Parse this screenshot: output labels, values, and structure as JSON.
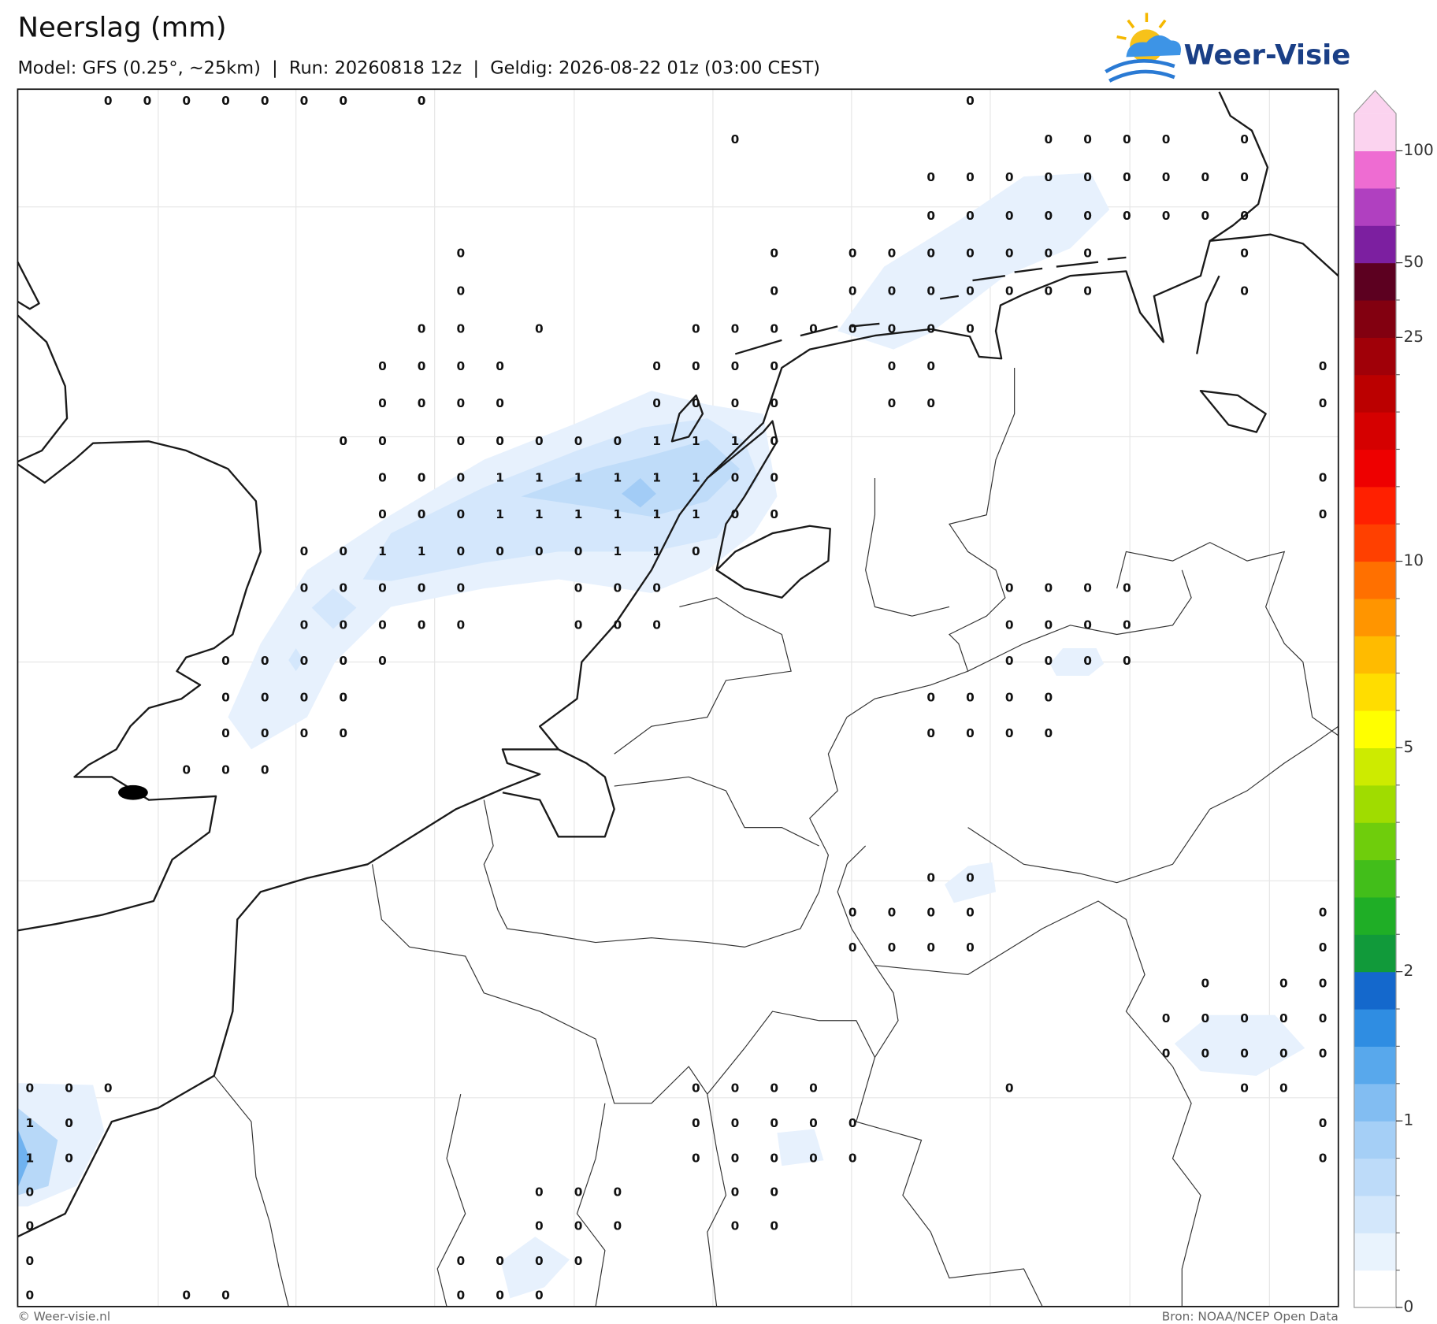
{
  "header": {
    "title": "Neerslag (mm)",
    "subtitle": "Model: GFS (0.25°, ~25km)  |  Run: 20260818 12z  |  Geldig: 2026-08-22 01z (03:00 CEST)",
    "logo": "Weer-Visie"
  },
  "footer": {
    "left": "© Weer-visie.nl",
    "right": "Bron: NOAA/NCEP Open Data"
  },
  "colorbar": {
    "levels": [
      0,
      0.2,
      0.4,
      0.6,
      0.8,
      1,
      1.25,
      1.5,
      1.75,
      2,
      2.5,
      3,
      3.5,
      4,
      4.5,
      5,
      6,
      7,
      8,
      9,
      10,
      12.5,
      15,
      17.5,
      20,
      22.5,
      25,
      37.5,
      50,
      67,
      83,
      100
    ],
    "colors": [
      "#ffffff",
      "#e9f3fd",
      "#d3e7fb",
      "#bddbf9",
      "#a5cff6",
      "#82bdf2",
      "#58a8ec",
      "#2f8de2",
      "#1468cc",
      "#119a3a",
      "#1fae26",
      "#42be1a",
      "#6fcd0c",
      "#a0dc00",
      "#cdeb00",
      "#ffff00",
      "#ffdd00",
      "#ffbb00",
      "#ff9500",
      "#ff7000",
      "#ff4000",
      "#ff2000",
      "#ee0000",
      "#d50000",
      "#bb0000",
      "#a00008",
      "#820010",
      "#5c0020",
      "#7c1fa0",
      "#b040c0",
      "#ee6cd2"
    ],
    "extend_color": "#fbd3ef",
    "ticks": [
      0,
      1,
      2,
      5,
      10,
      25,
      50,
      100
    ]
  },
  "map": {
    "values": [
      [
        null,
        null,
        0,
        0,
        0,
        0,
        0,
        0,
        0,
        null,
        0,
        null,
        null,
        null,
        null,
        null,
        null,
        null,
        null,
        null,
        null,
        null,
        null,
        null,
        0,
        null,
        null,
        null,
        null,
        null,
        null,
        null,
        null,
        null
      ],
      [
        null,
        null,
        null,
        null,
        null,
        null,
        null,
        null,
        null,
        null,
        null,
        null,
        null,
        null,
        null,
        null,
        null,
        null,
        0,
        null,
        null,
        null,
        null,
        null,
        null,
        null,
        0,
        0,
        0,
        0,
        null,
        0,
        null,
        null
      ],
      [
        null,
        null,
        null,
        null,
        null,
        null,
        null,
        null,
        null,
        null,
        null,
        null,
        null,
        null,
        null,
        null,
        null,
        null,
        null,
        null,
        null,
        null,
        null,
        0,
        0,
        0,
        0,
        0,
        0,
        0,
        0,
        0,
        null,
        null
      ],
      [
        null,
        null,
        null,
        null,
        null,
        null,
        null,
        null,
        null,
        null,
        null,
        null,
        null,
        null,
        null,
        null,
        null,
        null,
        null,
        null,
        null,
        null,
        null,
        0,
        0,
        0,
        0,
        0,
        0,
        0,
        0,
        0,
        null,
        null
      ],
      [
        null,
        null,
        null,
        null,
        null,
        null,
        null,
        null,
        null,
        null,
        null,
        0,
        null,
        null,
        null,
        null,
        null,
        null,
        null,
        0,
        null,
        0,
        0,
        0,
        0,
        0,
        0,
        0,
        null,
        null,
        null,
        0,
        null,
        null
      ],
      [
        null,
        null,
        null,
        null,
        null,
        null,
        null,
        null,
        null,
        null,
        null,
        0,
        null,
        null,
        null,
        null,
        null,
        null,
        null,
        0,
        null,
        0,
        0,
        0,
        0,
        0,
        0,
        0,
        null,
        null,
        null,
        0,
        null,
        null
      ],
      [
        null,
        null,
        null,
        null,
        null,
        null,
        null,
        null,
        null,
        null,
        0,
        0,
        null,
        0,
        null,
        null,
        null,
        0,
        0,
        0,
        0,
        0,
        0,
        0,
        0,
        null,
        null,
        null,
        null,
        null,
        null,
        null,
        null,
        null
      ],
      [
        null,
        null,
        null,
        null,
        null,
        null,
        null,
        null,
        null,
        0,
        0,
        0,
        0,
        null,
        null,
        null,
        0,
        0,
        0,
        0,
        null,
        null,
        0,
        0,
        null,
        null,
        null,
        null,
        null,
        null,
        null,
        null,
        null,
        0
      ],
      [
        null,
        null,
        null,
        null,
        null,
        null,
        null,
        null,
        null,
        0,
        0,
        0,
        0,
        null,
        null,
        null,
        0,
        0,
        0,
        0,
        null,
        null,
        0,
        0,
        null,
        null,
        null,
        null,
        null,
        null,
        null,
        null,
        null,
        0
      ],
      [
        null,
        null,
        null,
        null,
        null,
        null,
        null,
        null,
        0,
        0,
        null,
        0,
        0,
        0,
        0,
        0,
        1,
        1,
        1,
        0,
        null,
        null,
        null,
        null,
        null,
        null,
        null,
        null,
        null,
        null,
        null,
        null,
        null,
        null
      ],
      [
        null,
        null,
        null,
        null,
        null,
        null,
        null,
        null,
        null,
        0,
        0,
        0,
        1,
        1,
        1,
        1,
        1,
        1,
        0,
        0,
        null,
        null,
        null,
        null,
        null,
        null,
        null,
        null,
        null,
        null,
        null,
        null,
        null,
        0
      ],
      [
        null,
        null,
        null,
        null,
        null,
        null,
        null,
        null,
        null,
        0,
        0,
        0,
        1,
        1,
        1,
        1,
        1,
        1,
        0,
        0,
        null,
        null,
        null,
        null,
        null,
        null,
        null,
        null,
        null,
        null,
        null,
        null,
        null,
        0
      ],
      [
        null,
        null,
        null,
        null,
        null,
        null,
        null,
        0,
        0,
        1,
        1,
        0,
        0,
        0,
        0,
        1,
        1,
        0,
        null,
        null,
        null,
        null,
        null,
        null,
        null,
        null,
        null,
        null,
        null,
        null,
        null,
        null,
        null,
        null
      ],
      [
        null,
        null,
        null,
        null,
        null,
        null,
        null,
        0,
        0,
        0,
        0,
        0,
        null,
        null,
        0,
        0,
        0,
        null,
        null,
        null,
        null,
        null,
        null,
        null,
        null,
        0,
        0,
        0,
        0,
        null,
        null,
        null,
        null,
        null
      ],
      [
        null,
        null,
        null,
        null,
        null,
        null,
        null,
        0,
        0,
        0,
        0,
        0,
        null,
        null,
        0,
        0,
        0,
        null,
        null,
        null,
        null,
        null,
        null,
        null,
        null,
        0,
        0,
        0,
        0,
        null,
        null,
        null,
        null,
        null
      ],
      [
        null,
        null,
        null,
        null,
        null,
        0,
        0,
        0,
        0,
        0,
        null,
        null,
        null,
        null,
        null,
        null,
        null,
        null,
        null,
        null,
        null,
        null,
        null,
        null,
        null,
        0,
        0,
        0,
        0,
        null,
        null,
        null,
        null,
        null
      ],
      [
        null,
        null,
        null,
        null,
        null,
        0,
        0,
        0,
        0,
        null,
        null,
        null,
        null,
        null,
        null,
        null,
        null,
        null,
        null,
        null,
        null,
        null,
        null,
        0,
        0,
        0,
        0,
        null,
        null,
        null,
        null,
        null,
        null,
        null
      ],
      [
        null,
        null,
        null,
        null,
        null,
        0,
        0,
        0,
        0,
        null,
        null,
        null,
        null,
        null,
        null,
        null,
        null,
        null,
        null,
        null,
        null,
        null,
        null,
        0,
        0,
        0,
        0,
        null,
        null,
        null,
        null,
        null,
        null,
        null
      ],
      [
        null,
        null,
        null,
        null,
        0,
        0,
        0,
        null,
        null,
        null,
        null,
        null,
        null,
        null,
        null,
        null,
        null,
        null,
        null,
        null,
        null,
        null,
        null,
        null,
        null,
        null,
        null,
        null,
        null,
        null,
        null,
        null,
        null,
        null
      ],
      [
        null,
        null,
        null,
        null,
        null,
        null,
        null,
        null,
        null,
        null,
        null,
        null,
        null,
        null,
        null,
        null,
        null,
        null,
        null,
        null,
        null,
        null,
        null,
        null,
        null,
        null,
        null,
        null,
        null,
        null,
        null,
        null,
        null,
        null
      ],
      [
        null,
        null,
        null,
        null,
        null,
        null,
        null,
        null,
        null,
        null,
        null,
        null,
        null,
        null,
        null,
        null,
        null,
        null,
        null,
        null,
        null,
        null,
        null,
        null,
        null,
        null,
        null,
        null,
        null,
        null,
        null,
        null,
        null,
        null
      ],
      [
        null,
        null,
        null,
        null,
        null,
        null,
        null,
        null,
        null,
        null,
        null,
        null,
        null,
        null,
        null,
        null,
        null,
        null,
        null,
        null,
        null,
        null,
        null,
        0,
        0,
        null,
        null,
        null,
        null,
        null,
        null,
        null,
        null,
        null
      ],
      [
        null,
        null,
        null,
        null,
        null,
        null,
        null,
        null,
        null,
        null,
        null,
        null,
        null,
        null,
        null,
        null,
        null,
        null,
        null,
        null,
        null,
        0,
        0,
        0,
        0,
        null,
        null,
        null,
        null,
        null,
        null,
        null,
        null,
        0
      ],
      [
        null,
        null,
        null,
        null,
        null,
        null,
        null,
        null,
        null,
        null,
        null,
        null,
        null,
        null,
        null,
        null,
        null,
        null,
        null,
        null,
        null,
        0,
        0,
        0,
        0,
        null,
        null,
        null,
        null,
        null,
        null,
        null,
        null,
        0
      ],
      [
        null,
        null,
        null,
        null,
        null,
        null,
        null,
        null,
        null,
        null,
        null,
        null,
        null,
        null,
        null,
        null,
        null,
        null,
        null,
        null,
        null,
        null,
        null,
        null,
        null,
        null,
        null,
        null,
        null,
        null,
        0,
        null,
        0,
        0
      ],
      [
        null,
        null,
        null,
        null,
        null,
        null,
        null,
        null,
        null,
        null,
        null,
        null,
        null,
        null,
        null,
        null,
        null,
        null,
        null,
        null,
        null,
        null,
        null,
        null,
        null,
        null,
        null,
        null,
        null,
        0,
        0,
        0,
        0,
        0
      ],
      [
        null,
        null,
        null,
        null,
        null,
        null,
        null,
        null,
        null,
        null,
        null,
        null,
        null,
        null,
        null,
        null,
        null,
        null,
        null,
        null,
        null,
        null,
        null,
        null,
        null,
        null,
        null,
        null,
        null,
        0,
        0,
        0,
        0,
        0
      ],
      [
        0,
        0,
        0,
        null,
        null,
        null,
        null,
        null,
        null,
        null,
        null,
        null,
        null,
        null,
        null,
        null,
        null,
        0,
        0,
        0,
        0,
        null,
        null,
        null,
        null,
        0,
        null,
        null,
        null,
        null,
        null,
        0,
        0,
        null
      ],
      [
        1,
        0,
        null,
        null,
        null,
        null,
        null,
        null,
        null,
        null,
        null,
        null,
        null,
        null,
        null,
        null,
        null,
        0,
        0,
        0,
        0,
        0,
        null,
        null,
        null,
        null,
        null,
        null,
        null,
        null,
        null,
        null,
        null,
        0
      ],
      [
        1,
        0,
        null,
        null,
        null,
        null,
        null,
        null,
        null,
        null,
        null,
        null,
        null,
        null,
        null,
        null,
        null,
        0,
        0,
        0,
        0,
        0,
        null,
        null,
        null,
        null,
        null,
        null,
        null,
        null,
        null,
        null,
        null,
        0
      ],
      [
        0,
        null,
        null,
        null,
        null,
        null,
        null,
        null,
        null,
        null,
        null,
        null,
        null,
        0,
        0,
        0,
        null,
        null,
        0,
        0,
        null,
        null,
        null,
        null,
        null,
        null,
        null,
        null,
        null,
        null,
        null,
        null,
        null,
        null
      ],
      [
        0,
        null,
        null,
        null,
        null,
        null,
        null,
        null,
        null,
        null,
        null,
        null,
        null,
        0,
        0,
        0,
        null,
        null,
        0,
        0,
        null,
        null,
        null,
        null,
        null,
        null,
        null,
        null,
        null,
        null,
        null,
        null,
        null,
        null
      ],
      [
        0,
        null,
        null,
        null,
        null,
        null,
        null,
        null,
        null,
        null,
        null,
        0,
        0,
        0,
        0,
        null,
        null,
        null,
        null,
        null,
        null,
        null,
        null,
        null,
        null,
        null,
        null,
        null,
        null,
        null,
        null,
        null,
        null,
        null
      ],
      [
        0,
        null,
        null,
        null,
        0,
        0,
        null,
        null,
        null,
        null,
        null,
        0,
        0,
        0,
        null,
        null,
        null,
        null,
        null,
        null,
        null,
        null,
        null,
        null,
        null,
        null,
        null,
        null,
        null,
        null,
        null,
        null,
        null,
        null
      ]
    ]
  }
}
